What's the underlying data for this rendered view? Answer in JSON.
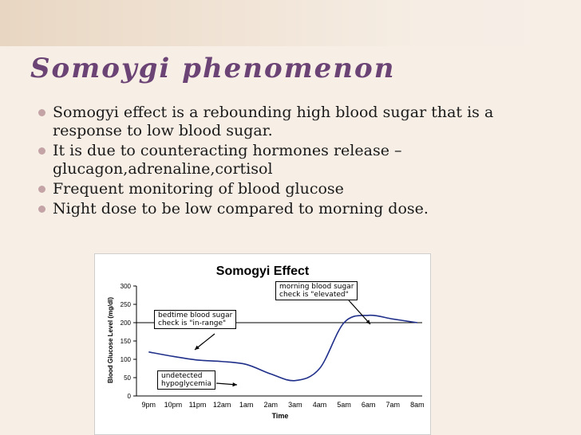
{
  "slide": {
    "title": "Somoygi phenomenon",
    "bullets": [
      "Somogyi effect is a rebounding high blood sugar that is a response to low blood sugar.",
      "It is due to counteracting hormones release – glucagon,adrenaline,cortisol",
      "Frequent monitoring of blood glucose",
      "Night dose to be low compared to morning dose."
    ]
  },
  "colors": {
    "title": "#6b4375",
    "curve": "#1f2f8a",
    "bullet": "#c4a3a6"
  },
  "chart_data": {
    "type": "line",
    "title": "Somogyi Effect",
    "xlabel": "Time",
    "ylabel": "Blood Glucose Level (mg/dl)",
    "ylim": [
      0,
      300
    ],
    "yticks": [
      0,
      50,
      100,
      150,
      200,
      250,
      300
    ],
    "grid": true,
    "categories": [
      "9pm",
      "10pm",
      "11pm",
      "12am",
      "1am",
      "2am",
      "3am",
      "4am",
      "5am",
      "6am",
      "7am",
      "8am"
    ],
    "series": [
      {
        "values": [
          120,
          108,
          98,
          94,
          86,
          60,
          42,
          75,
          200,
          220,
          210,
          200
        ]
      }
    ],
    "annotations": [
      {
        "text": "morning blood sugar\ncheck is \"elevated\""
      },
      {
        "text": "bedtime blood sugar\ncheck is \"in-range\""
      },
      {
        "text": "undetected\nhypoglycemia"
      }
    ]
  }
}
